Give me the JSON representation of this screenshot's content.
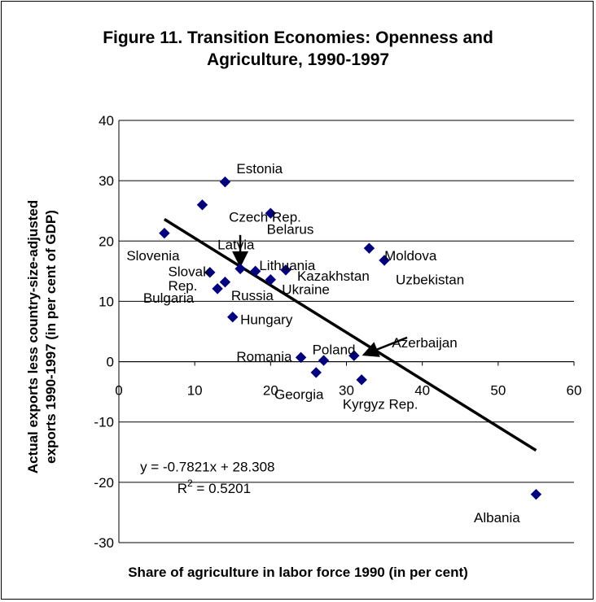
{
  "chart_data": {
    "type": "scatter",
    "title_line1": "Figure 11. Transition Economies: Openness and",
    "title_line2": "Agriculture, 1990-1997",
    "xlabel": "Share of agriculture in labor force 1990 (in per cent)",
    "ylabel_line1": "Actual exports less country-size-adjusted",
    "ylabel_line2": "exports 1990-1997 (in per cent of GDP)",
    "xlim": [
      0,
      60
    ],
    "ylim": [
      -30,
      40
    ],
    "xticks": [
      0,
      10,
      20,
      30,
      40,
      50,
      60
    ],
    "yticks": [
      -30,
      -20,
      -10,
      0,
      10,
      20,
      30,
      40
    ],
    "grid": "horizontal",
    "marker_color": "#000080",
    "points": [
      {
        "x": 6,
        "y": 21.3
      },
      {
        "x": 11,
        "y": 26
      },
      {
        "x": 14,
        "y": 29.8
      },
      {
        "x": 20,
        "y": 24.6
      },
      {
        "x": 12,
        "y": 14.8
      },
      {
        "x": 16,
        "y": 15.4
      },
      {
        "x": 18,
        "y": 15
      },
      {
        "x": 22,
        "y": 15.2
      },
      {
        "x": 20,
        "y": 13.6
      },
      {
        "x": 14,
        "y": 13.2
      },
      {
        "x": 13,
        "y": 12.1
      },
      {
        "x": 15,
        "y": 7.4
      },
      {
        "x": 33,
        "y": 18.8
      },
      {
        "x": 35,
        "y": 16.8
      },
      {
        "x": 24,
        "y": 0.7
      },
      {
        "x": 27,
        "y": 0.2
      },
      {
        "x": 26,
        "y": -1.8
      },
      {
        "x": 31,
        "y": 1
      },
      {
        "x": 32,
        "y": -3
      },
      {
        "x": 55,
        "y": -22
      }
    ],
    "labels": [
      {
        "text": "Estonia",
        "x": 15.5,
        "y": 31.2
      },
      {
        "text": "Czech Rep.",
        "x": 14.5,
        "y": 23.2
      },
      {
        "text": "Belarus",
        "x": 19.5,
        "y": 21.2
      },
      {
        "text": "Latvia",
        "x": 13,
        "y": 18.6
      },
      {
        "text": "Slovenia",
        "x": 1,
        "y": 16.8
      },
      {
        "text": "Lithuania",
        "x": 18.5,
        "y": 15.2
      },
      {
        "text": "Slovak",
        "x": 6.5,
        "y": 14.2
      },
      {
        "text": "Rep.",
        "x": 6.5,
        "y": 11.8
      },
      {
        "text": "Bulgaria",
        "x": 3.2,
        "y": 9.8
      },
      {
        "text": "Russia",
        "x": 14.8,
        "y": 10.2
      },
      {
        "text": "Kazakhstan",
        "x": 23.5,
        "y": 13.4
      },
      {
        "text": "Ukraine",
        "x": 21.5,
        "y": 11.2
      },
      {
        "text": "Hungary",
        "x": 16,
        "y": 6.2
      },
      {
        "text": "Moldova",
        "x": 35,
        "y": 16.8
      },
      {
        "text": "Uzbekistan",
        "x": 36.5,
        "y": 12.8
      },
      {
        "text": "Azerbaijan",
        "x": 36,
        "y": 2.4
      },
      {
        "text": "Poland",
        "x": 25.5,
        "y": 1.2
      },
      {
        "text": "Romania",
        "x": 15.5,
        "y": 0.1
      },
      {
        "text": "Georgia",
        "x": 20.5,
        "y": -6.2
      },
      {
        "text": "Kyrgyz Rep.",
        "x": 29.5,
        "y": -7.8
      },
      {
        "text": "Albania",
        "x": 46.8,
        "y": -26.6
      }
    ],
    "trendline": {
      "slope": -0.7821,
      "intercept": 28.308,
      "x_start": 6,
      "x_end": 55
    },
    "equation": "y = -0.7821x + 28.308",
    "r2_base": "R",
    "r2_sup": "2",
    "r2_value": " = 0.5201",
    "arrows": [
      {
        "from": [
          16,
          21
        ],
        "to": [
          16,
          16.6
        ]
      },
      {
        "from": [
          38,
          4
        ],
        "to": [
          32.8,
          1.4
        ]
      }
    ]
  }
}
